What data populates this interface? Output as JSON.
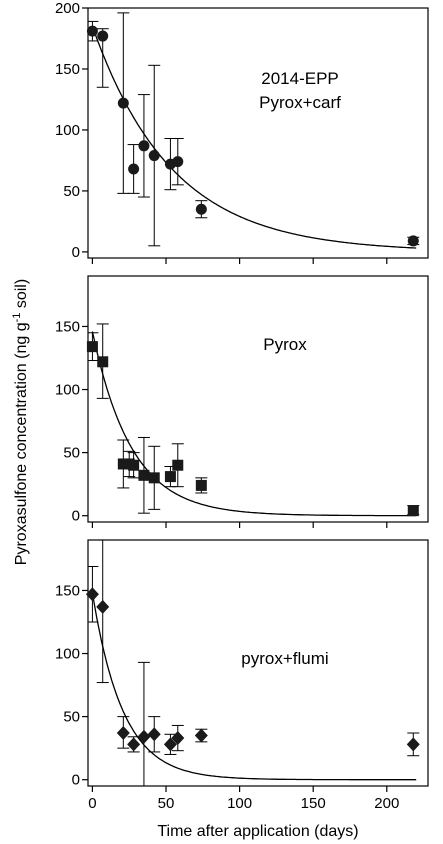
{
  "figure": {
    "ylabel_main": "Pyroxasulfone concentration (ng g",
    "ylabel_sup": "-1",
    "ylabel_tail": " soil)",
    "xlabel": "Time after application (days)",
    "x_ticks": [
      "0",
      "50",
      "100",
      "150",
      "200"
    ]
  },
  "chart_data": [
    {
      "type": "scatter",
      "marker": "circle",
      "annotation": [
        "2014-EPP",
        "Pyrox+carf"
      ],
      "xlim": [
        -3,
        228
      ],
      "ylim": [
        -5,
        200
      ],
      "y_ticks": [
        0,
        50,
        100,
        150,
        200
      ],
      "x_ticks": [
        0,
        50,
        100,
        150,
        200
      ],
      "points": [
        {
          "x": 0,
          "y": 181,
          "lo": 173,
          "hi": 189
        },
        {
          "x": 7,
          "y": 177,
          "lo": 135,
          "hi": 183
        },
        {
          "x": 21,
          "y": 122,
          "lo": 48,
          "hi": 196
        },
        {
          "x": 28,
          "y": 68,
          "lo": 48,
          "hi": 88
        },
        {
          "x": 35,
          "y": 87,
          "lo": 45,
          "hi": 129
        },
        {
          "x": 42,
          "y": 79,
          "lo": 5,
          "hi": 153
        },
        {
          "x": 53,
          "y": 72,
          "lo": 51,
          "hi": 93
        },
        {
          "x": 58,
          "y": 74,
          "lo": 55,
          "hi": 93
        },
        {
          "x": 74,
          "y": 35,
          "lo": 28,
          "hi": 42
        },
        {
          "x": 218,
          "y": 9,
          "lo": 6,
          "hi": 12
        }
      ],
      "fit": {
        "C0": 185,
        "k": 0.0185
      }
    },
    {
      "type": "scatter",
      "marker": "square",
      "annotation": [
        "Pyrox"
      ],
      "xlim": [
        -3,
        228
      ],
      "ylim": [
        -5,
        190
      ],
      "y_ticks": [
        0,
        50,
        100,
        150
      ],
      "x_ticks": [
        0,
        50,
        100,
        150,
        200
      ],
      "points": [
        {
          "x": 0,
          "y": 134,
          "lo": 123,
          "hi": 145
        },
        {
          "x": 7,
          "y": 122,
          "lo": 93,
          "hi": 152
        },
        {
          "x": 21,
          "y": 41,
          "lo": 22,
          "hi": 60
        },
        {
          "x": 25,
          "y": 41,
          "lo": 31,
          "hi": 51
        },
        {
          "x": 28,
          "y": 40,
          "lo": 30,
          "hi": 50
        },
        {
          "x": 35,
          "y": 32,
          "lo": 2,
          "hi": 62
        },
        {
          "x": 42,
          "y": 30,
          "lo": 5,
          "hi": 55
        },
        {
          "x": 53,
          "y": 31,
          "lo": 23,
          "hi": 39
        },
        {
          "x": 58,
          "y": 40,
          "lo": 23,
          "hi": 57
        },
        {
          "x": 74,
          "y": 24,
          "lo": 18,
          "hi": 30
        },
        {
          "x": 218,
          "y": 4,
          "lo": 1,
          "hi": 8
        }
      ],
      "fit": {
        "C0": 146,
        "k": 0.0375
      }
    },
    {
      "type": "scatter",
      "marker": "diamond",
      "annotation": [
        "pyrox+flumi"
      ],
      "xlim": [
        -3,
        228
      ],
      "ylim": [
        -5,
        190
      ],
      "y_ticks": [
        0,
        50,
        100,
        150
      ],
      "x_ticks": [
        0,
        50,
        100,
        150,
        200
      ],
      "points": [
        {
          "x": 0,
          "y": 147,
          "lo": 125,
          "hi": 169
        },
        {
          "x": 7,
          "y": 137,
          "lo": 77,
          "hi": 197
        },
        {
          "x": 21,
          "y": 37,
          "lo": 25,
          "hi": 50
        },
        {
          "x": 28,
          "y": 28,
          "lo": 22,
          "hi": 34
        },
        {
          "x": 35,
          "y": 34,
          "lo": -25,
          "hi": 93
        },
        {
          "x": 42,
          "y": 36,
          "lo": 22,
          "hi": 50
        },
        {
          "x": 53,
          "y": 28,
          "lo": 20,
          "hi": 36
        },
        {
          "x": 58,
          "y": 33,
          "lo": 23,
          "hi": 43
        },
        {
          "x": 74,
          "y": 35,
          "lo": 30,
          "hi": 40
        },
        {
          "x": 218,
          "y": 28,
          "lo": 19,
          "hi": 37
        }
      ],
      "fit": {
        "C0": 148,
        "k": 0.048
      }
    }
  ]
}
